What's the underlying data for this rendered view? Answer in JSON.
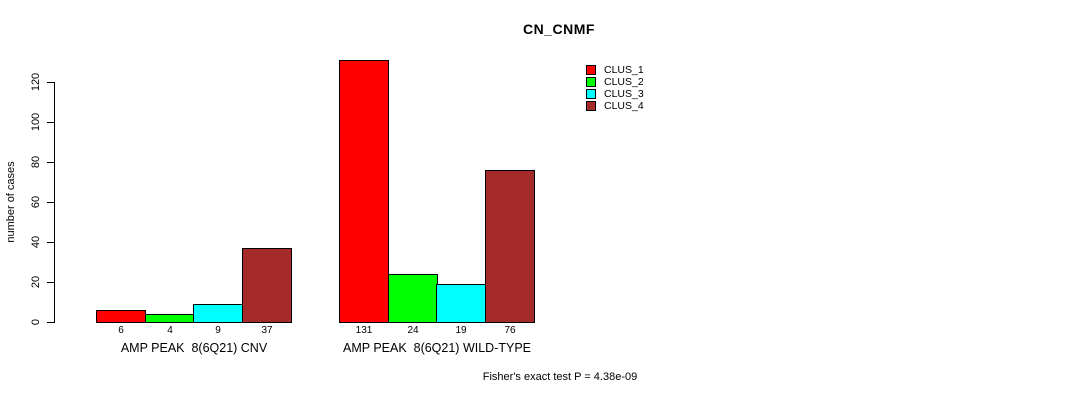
{
  "chart_data": {
    "type": "bar",
    "title": "CN_CNMF",
    "ylabel": "number of cases",
    "xlabel": "",
    "ylim": [
      0,
      120
    ],
    "yticks": [
      0,
      20,
      40,
      60,
      80,
      100,
      120
    ],
    "grid": false,
    "legend_position": "top-right",
    "categories": [
      "AMP PEAK  8(6Q21) CNV",
      "AMP PEAK  8(6Q21) WILD-TYPE"
    ],
    "series": [
      {
        "name": "CLUS_1",
        "color": "#ff0000",
        "values": [
          6,
          131
        ]
      },
      {
        "name": "CLUS_2",
        "color": "#00ff00",
        "values": [
          4,
          24
        ]
      },
      {
        "name": "CLUS_3",
        "color": "#00ffff",
        "values": [
          9,
          19
        ]
      },
      {
        "name": "CLUS_4",
        "color": "#a52a2a",
        "values": [
          37,
          76
        ]
      }
    ],
    "bar_value_labels": [
      [
        6,
        4,
        9,
        37
      ],
      [
        131,
        24,
        19,
        76
      ]
    ],
    "annotation": "Fisher's exact test P = 4.38e-09"
  }
}
